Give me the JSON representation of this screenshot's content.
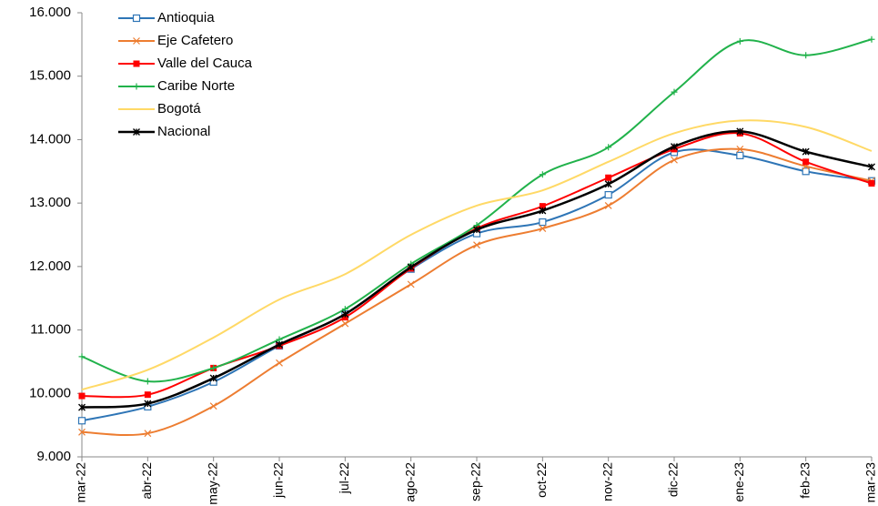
{
  "chart_data": {
    "type": "line",
    "categories": [
      "mar-22",
      "abr-22",
      "may-22",
      "jun-22",
      "jul-22",
      "ago-22",
      "sep-22",
      "oct-22",
      "nov-22",
      "dic-22",
      "ene-23",
      "feb-23",
      "mar-23"
    ],
    "series": [
      {
        "name": "Antioquia",
        "color": "#2e75b6",
        "marker": "square",
        "values": [
          9570,
          9790,
          10180,
          10750,
          11250,
          11960,
          12520,
          12700,
          13130,
          13800,
          13750,
          13500,
          13350
        ]
      },
      {
        "name": "Eje Cafetero",
        "color": "#ed7d31",
        "marker": "x",
        "values": [
          9390,
          9370,
          9800,
          10480,
          11100,
          11720,
          12340,
          12600,
          12960,
          13680,
          13850,
          13580,
          13350
        ]
      },
      {
        "name": "Valle del Cauca",
        "color": "#ff0000",
        "marker": "filled-square",
        "values": [
          9960,
          9980,
          10400,
          10750,
          11200,
          11970,
          12600,
          12950,
          13400,
          13850,
          14100,
          13650,
          13310
        ]
      },
      {
        "name": "Caribe Norte",
        "color": "#21b24b",
        "marker": "plus",
        "values": [
          10580,
          10190,
          10400,
          10850,
          11330,
          12040,
          12650,
          13450,
          13880,
          14750,
          15550,
          15330,
          15580
        ]
      },
      {
        "name": "Bogotá",
        "color": "#ffd966",
        "marker": "none",
        "values": [
          10060,
          10370,
          10880,
          11480,
          11880,
          12500,
          12960,
          13200,
          13650,
          14100,
          14300,
          14200,
          13820
        ]
      },
      {
        "name": "Nacional",
        "color": "#000000",
        "marker": "star",
        "values": [
          9780,
          9840,
          10240,
          10770,
          11250,
          11990,
          12580,
          12880,
          13300,
          13890,
          14130,
          13810,
          13570
        ]
      }
    ],
    "ylim": [
      9000,
      16000
    ],
    "yticks": [
      {
        "value": 9000,
        "label": "9.000"
      },
      {
        "value": 10000,
        "label": "10.000"
      },
      {
        "value": 11000,
        "label": "11.000"
      },
      {
        "value": 12000,
        "label": "12.000"
      },
      {
        "value": 13000,
        "label": "13.000"
      },
      {
        "value": 14000,
        "label": "14.000"
      },
      {
        "value": 15000,
        "label": "15.000"
      },
      {
        "value": 16000,
        "label": "16.000"
      }
    ],
    "grid": false
  }
}
